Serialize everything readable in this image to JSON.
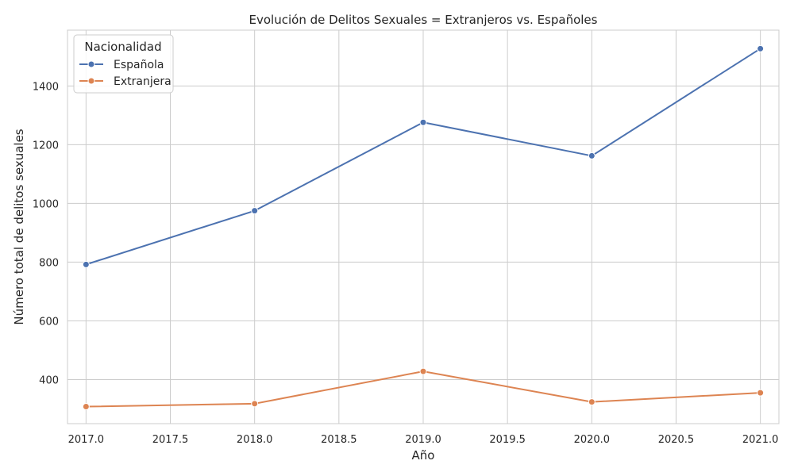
{
  "chart_data": {
    "type": "line",
    "title": "Evolución de Delitos Sexuales = Extranjeros vs. Españoles",
    "xlabel": "Año",
    "ylabel": "Número total de delitos sexuales",
    "x": [
      2017,
      2018,
      2019,
      2020,
      2021
    ],
    "xlim": [
      2016.89,
      2021.11
    ],
    "ylim": [
      250,
      1590
    ],
    "x_ticks": [
      "2017.0",
      "2017.5",
      "2018.0",
      "2018.5",
      "2019.0",
      "2019.5",
      "2020.0",
      "2020.5",
      "2021.0"
    ],
    "y_ticks": [
      "400",
      "600",
      "800",
      "1000",
      "1200",
      "1400"
    ],
    "grid": true,
    "legend": {
      "title": "Nacionalidad",
      "placement": "top-left"
    },
    "series": [
      {
        "name": "Española",
        "color": "#4c72b0",
        "values": [
          792,
          975,
          1276,
          1162,
          1527
        ]
      },
      {
        "name": "Extranjera",
        "color": "#dd8452",
        "values": [
          308,
          318,
          428,
          324,
          355
        ]
      }
    ]
  }
}
